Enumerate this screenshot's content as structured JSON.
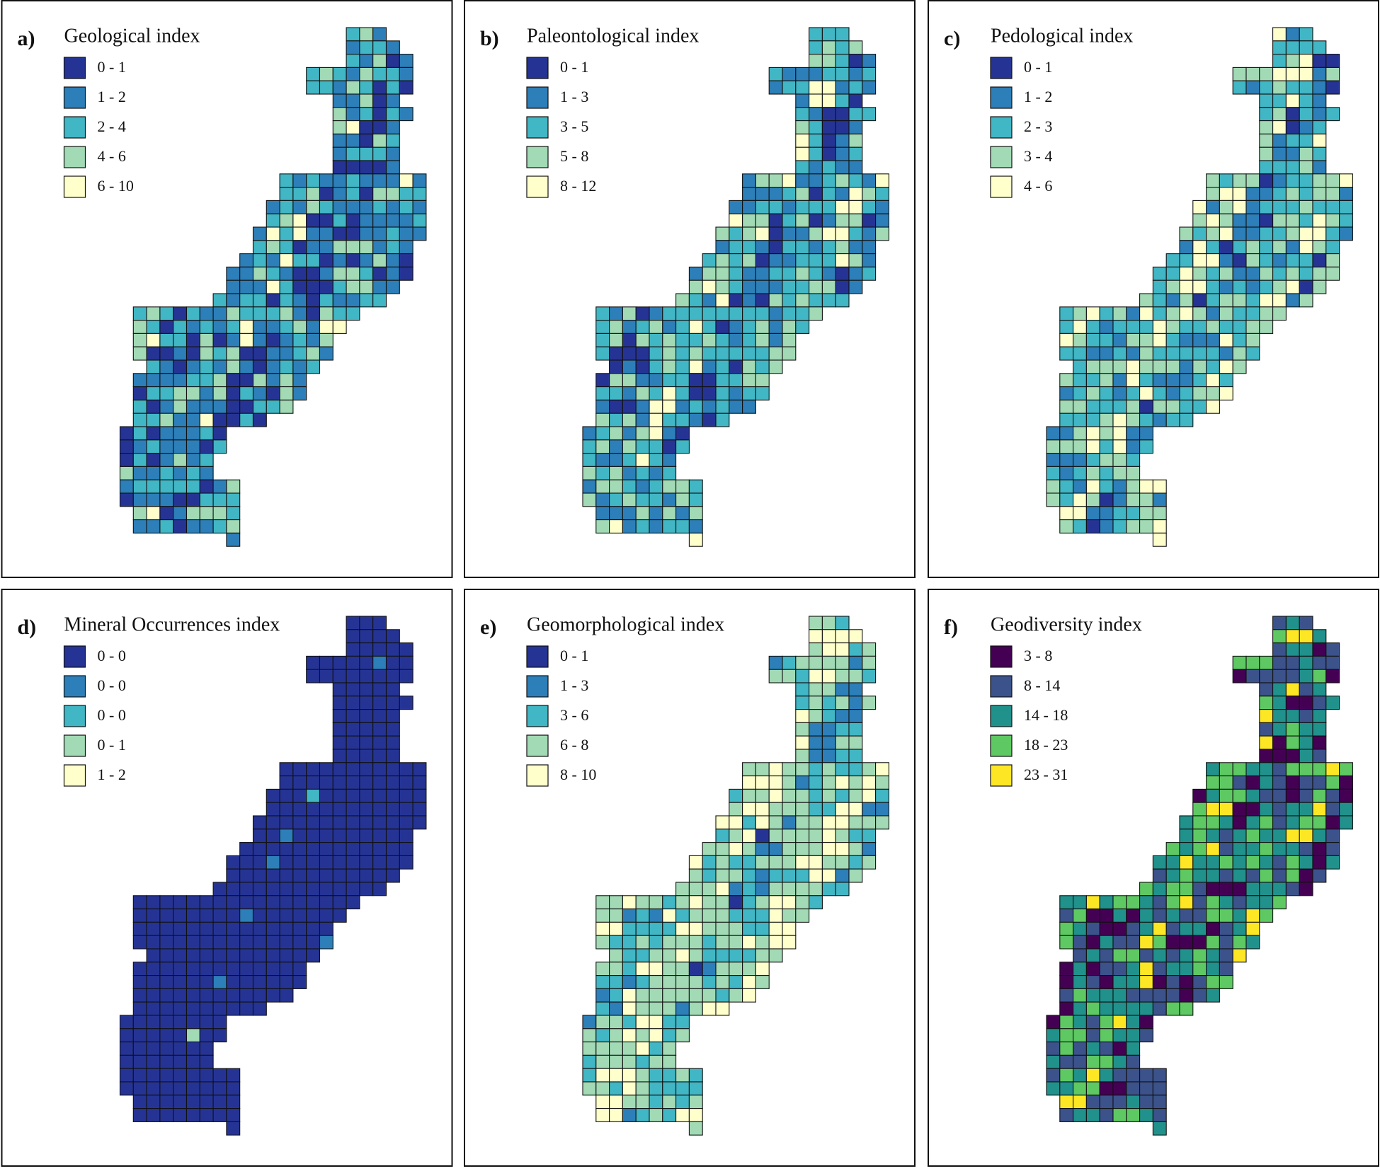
{
  "panels": [
    {
      "letter": "a)",
      "title": "Geological index",
      "legend": [
        {
          "label": "0 - 1",
          "color": "#253494"
        },
        {
          "label": "1 - 2",
          "color": "#2c7fb8"
        },
        {
          "label": "2 - 4",
          "color": "#41b6c4"
        },
        {
          "label": "4 - 6",
          "color": "#a1dab4"
        },
        {
          "label": "6 - 10",
          "color": "#ffffcc"
        }
      ]
    },
    {
      "letter": "b)",
      "title": "Paleontological index",
      "legend": [
        {
          "label": "0 - 1",
          "color": "#253494"
        },
        {
          "label": "1 - 3",
          "color": "#2c7fb8"
        },
        {
          "label": "3 - 5",
          "color": "#41b6c4"
        },
        {
          "label": "5 - 8",
          "color": "#a1dab4"
        },
        {
          "label": "8 - 12",
          "color": "#ffffcc"
        }
      ]
    },
    {
      "letter": "c)",
      "title": "Pedological index",
      "legend": [
        {
          "label": "0 - 1",
          "color": "#253494"
        },
        {
          "label": "1 - 2",
          "color": "#2c7fb8"
        },
        {
          "label": "2 - 3",
          "color": "#41b6c4"
        },
        {
          "label": "3 - 4",
          "color": "#a1dab4"
        },
        {
          "label": "4 - 6",
          "color": "#ffffcc"
        }
      ]
    },
    {
      "letter": "d)",
      "title": "Mineral Occurrences index",
      "legend": [
        {
          "label": "0 - 0",
          "color": "#253494"
        },
        {
          "label": "0 - 0",
          "color": "#2c7fb8"
        },
        {
          "label": "0 - 0",
          "color": "#41b6c4"
        },
        {
          "label": "0 - 1",
          "color": "#a1dab4"
        },
        {
          "label": "1 - 2",
          "color": "#ffffcc"
        }
      ]
    },
    {
      "letter": "e)",
      "title": "Geomorphological index",
      "legend": [
        {
          "label": "0 - 1",
          "color": "#253494"
        },
        {
          "label": "1 - 3",
          "color": "#2c7fb8"
        },
        {
          "label": "3 - 6",
          "color": "#41b6c4"
        },
        {
          "label": "6 - 8",
          "color": "#a1dab4"
        },
        {
          "label": "8 - 10",
          "color": "#ffffcc"
        }
      ]
    },
    {
      "letter": "f)",
      "title": "Geodiversity index",
      "legend": [
        {
          "label": "3 - 8",
          "color": "#440154"
        },
        {
          "label": "8 - 14",
          "color": "#3b528b"
        },
        {
          "label": "14 - 18",
          "color": "#21918c"
        },
        {
          "label": "18 - 23",
          "color": "#5ec962"
        },
        {
          "label": "23 - 31",
          "color": "#fde725"
        }
      ]
    }
  ]
}
